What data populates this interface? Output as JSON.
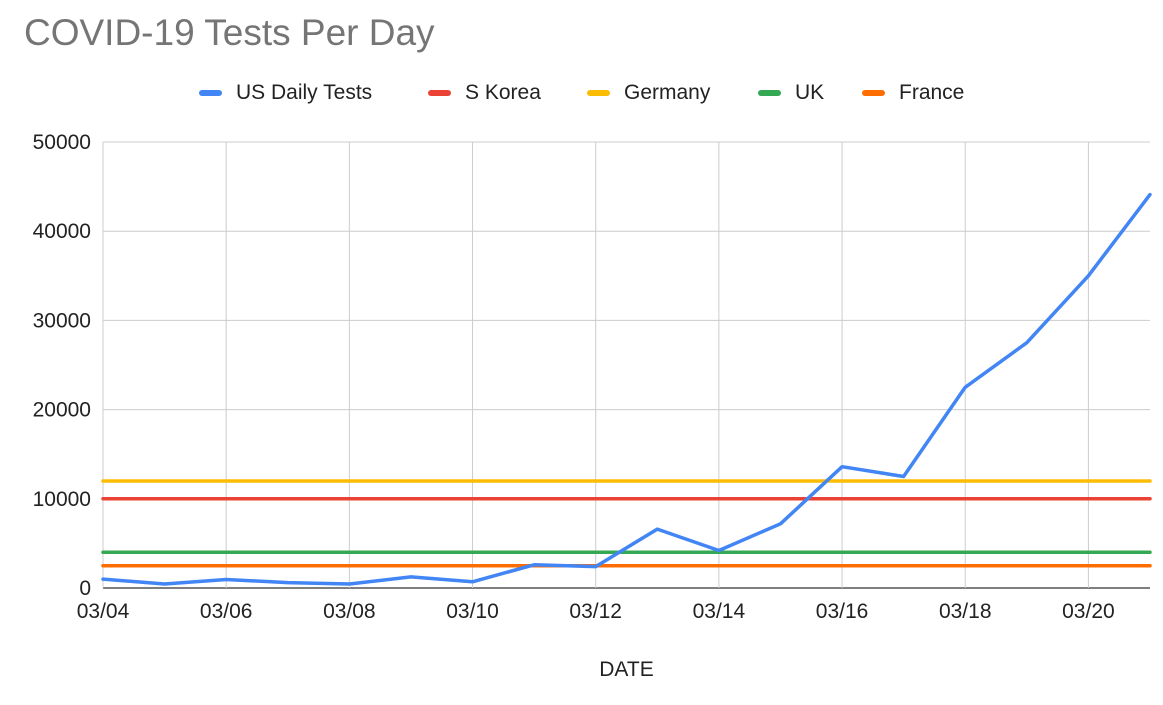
{
  "chart_data": {
    "type": "line",
    "title": "COVID-19 Tests Per Day",
    "xlabel": "DATE",
    "ylabel": "",
    "ylim": [
      0,
      50000
    ],
    "yticks": [
      "0",
      "10000",
      "20000",
      "30000",
      "40000",
      "50000"
    ],
    "grid": true,
    "legend_position": "top",
    "x": [
      "03/04",
      "03/05",
      "03/06",
      "03/07",
      "03/08",
      "03/09",
      "03/10",
      "03/11",
      "03/12",
      "03/13",
      "03/14",
      "03/15",
      "03/16",
      "03/17",
      "03/18",
      "03/19",
      "03/20",
      "03/21"
    ],
    "xtick_labels": [
      "03/04",
      "03/06",
      "03/08",
      "03/10",
      "03/12",
      "03/14",
      "03/16",
      "03/18",
      "03/20"
    ],
    "series": [
      {
        "name": "US Daily Tests",
        "color": "#4285F4",
        "values": [
          1000,
          450,
          950,
          600,
          450,
          1250,
          700,
          2600,
          2400,
          6600,
          4200,
          7200,
          13600,
          12500,
          22500,
          27500,
          35000,
          44100
        ]
      },
      {
        "name": "S Korea",
        "color": "#EA4335",
        "values": [
          10000,
          10000,
          10000,
          10000,
          10000,
          10000,
          10000,
          10000,
          10000,
          10000,
          10000,
          10000,
          10000,
          10000,
          10000,
          10000,
          10000,
          10000
        ]
      },
      {
        "name": "Germany",
        "color": "#FBBC04",
        "values": [
          12000,
          12000,
          12000,
          12000,
          12000,
          12000,
          12000,
          12000,
          12000,
          12000,
          12000,
          12000,
          12000,
          12000,
          12000,
          12000,
          12000,
          12000
        ]
      },
      {
        "name": "UK",
        "color": "#34A853",
        "values": [
          4000,
          4000,
          4000,
          4000,
          4000,
          4000,
          4000,
          4000,
          4000,
          4000,
          4000,
          4000,
          4000,
          4000,
          4000,
          4000,
          4000,
          4000
        ]
      },
      {
        "name": "France",
        "color": "#FF6D01",
        "values": [
          2500,
          2500,
          2500,
          2500,
          2500,
          2500,
          2500,
          2500,
          2500,
          2500,
          2500,
          2500,
          2500,
          2500,
          2500,
          2500,
          2500,
          2500
        ]
      }
    ]
  }
}
